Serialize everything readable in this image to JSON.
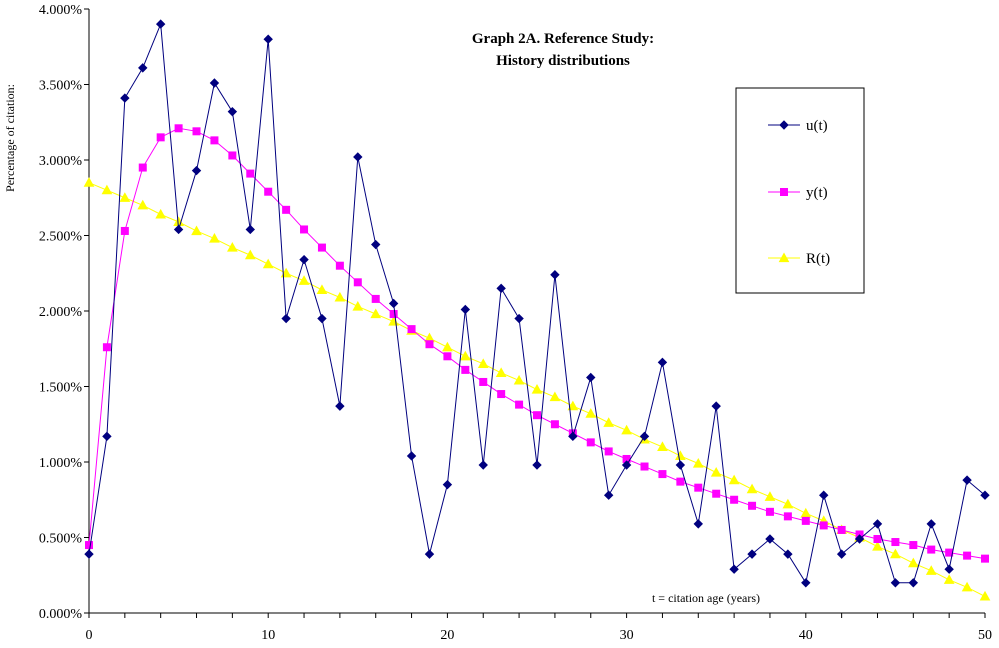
{
  "chart_data": {
    "type": "line",
    "title": "Graph 2A.  Reference Study:",
    "subtitle": "History distributions",
    "xlabel": "t = citation age (years)",
    "ylabel": "Percentage of citation:",
    "xlim": [
      0,
      50
    ],
    "ylim": [
      0,
      4
    ],
    "x_ticks": [
      "0",
      "10",
      "20",
      "30",
      "40",
      "50"
    ],
    "y_ticks": [
      "0.000%",
      "0.500%",
      "1.000%",
      "1.500%",
      "2.000%",
      "2.500%",
      "3.000%",
      "3.500%",
      "4.000%"
    ],
    "legend_position": "right",
    "grid": false,
    "x": [
      0,
      1,
      2,
      3,
      4,
      5,
      6,
      7,
      8,
      9,
      10,
      11,
      12,
      13,
      14,
      15,
      16,
      17,
      18,
      19,
      20,
      21,
      22,
      23,
      24,
      25,
      26,
      27,
      28,
      29,
      30,
      31,
      32,
      33,
      34,
      35,
      36,
      37,
      38,
      39,
      40,
      41,
      42,
      43,
      44,
      45,
      46,
      47,
      48,
      49,
      50
    ],
    "series": [
      {
        "name": "u(t)",
        "color": "#00007F",
        "marker": "diamond",
        "values": [
          0.39,
          1.17,
          3.41,
          3.61,
          3.9,
          2.54,
          2.93,
          3.51,
          3.32,
          2.54,
          3.8,
          1.95,
          2.34,
          1.95,
          1.37,
          3.02,
          2.44,
          2.05,
          1.04,
          0.39,
          0.85,
          2.01,
          0.98,
          2.15,
          1.95,
          0.98,
          2.24,
          1.17,
          1.56,
          0.78,
          0.98,
          1.17,
          1.66,
          0.98,
          0.59,
          1.37,
          0.29,
          0.39,
          0.49,
          0.39,
          0.2,
          0.78,
          0.39,
          0.49,
          0.59,
          0.2,
          0.2,
          0.59,
          0.29,
          0.88,
          0.78
        ]
      },
      {
        "name": "y(t)",
        "color": "#FF00FF",
        "marker": "square",
        "values": [
          0.45,
          1.76,
          2.53,
          2.95,
          3.15,
          3.21,
          3.19,
          3.13,
          3.03,
          2.91,
          2.79,
          2.67,
          2.54,
          2.42,
          2.3,
          2.19,
          2.08,
          1.98,
          1.88,
          1.78,
          1.7,
          1.61,
          1.53,
          1.45,
          1.38,
          1.31,
          1.25,
          1.19,
          1.13,
          1.07,
          1.02,
          0.97,
          0.92,
          0.87,
          0.83,
          0.79,
          0.75,
          0.71,
          0.67,
          0.64,
          0.61,
          0.58,
          0.55,
          0.52,
          0.49,
          0.47,
          0.45,
          0.42,
          0.4,
          0.38,
          0.36
        ]
      },
      {
        "name": "R(t)",
        "color": "#FFFF00",
        "marker": "triangle",
        "values": [
          2.85,
          2.8,
          2.75,
          2.7,
          2.64,
          2.59,
          2.53,
          2.48,
          2.42,
          2.37,
          2.31,
          2.25,
          2.2,
          2.14,
          2.09,
          2.03,
          1.98,
          1.93,
          1.87,
          1.82,
          1.76,
          1.7,
          1.65,
          1.59,
          1.54,
          1.48,
          1.43,
          1.37,
          1.32,
          1.26,
          1.21,
          1.15,
          1.1,
          1.04,
          0.99,
          0.93,
          0.88,
          0.82,
          0.77,
          0.72,
          0.66,
          0.61,
          0.55,
          0.5,
          0.44,
          0.39,
          0.33,
          0.28,
          0.22,
          0.17,
          0.11
        ]
      }
    ]
  }
}
